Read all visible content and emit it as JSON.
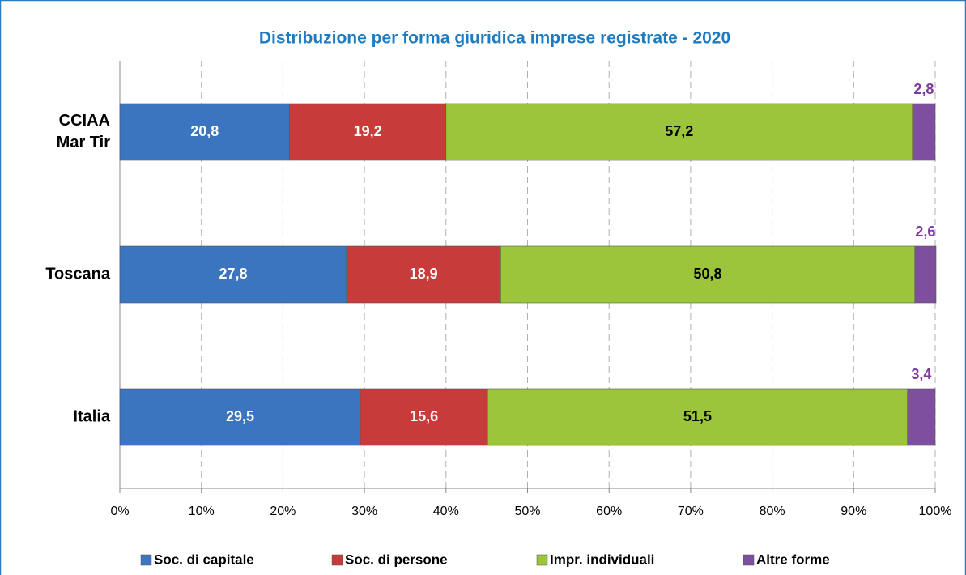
{
  "chart_data": {
    "type": "stacked-bar-horizontal",
    "title": "Distribuzione per forma giuridica imprese registrate - 2020",
    "categories": [
      "CCIAA Mar Tir",
      "Toscana",
      "Italia"
    ],
    "series": [
      {
        "name": "Soc. di capitale",
        "color": "#3b74bf",
        "label_color": "#ffffff",
        "values": [
          20.8,
          27.8,
          29.5
        ],
        "value_labels": [
          "20,8",
          "27,8",
          "29,5"
        ]
      },
      {
        "name": "Soc. di persone",
        "color": "#c73b3b",
        "label_color": "#ffffff",
        "values": [
          19.2,
          18.9,
          15.6
        ],
        "value_labels": [
          "19,2",
          "18,9",
          "15,6"
        ]
      },
      {
        "name": "Impr. individuali",
        "color": "#9cc53c",
        "label_color": "#000000",
        "values": [
          57.2,
          50.8,
          51.5
        ],
        "value_labels": [
          "57,2",
          "50,8",
          "51,5"
        ]
      },
      {
        "name": "Altre forme",
        "color": "#7d4f9e",
        "label_color": "#7d3ba0",
        "values": [
          2.8,
          2.6,
          3.4
        ],
        "value_labels": [
          "2,8",
          "2,6",
          "3,4"
        ]
      }
    ],
    "xlim": [
      0,
      100
    ],
    "xticks": [
      {
        "value": 0,
        "label": "0%"
      },
      {
        "value": 10,
        "label": "10%"
      },
      {
        "value": 20,
        "label": "20%"
      },
      {
        "value": 30,
        "label": "30%"
      },
      {
        "value": 40,
        "label": "40%"
      },
      {
        "value": 50,
        "label": "50%"
      },
      {
        "value": 60,
        "label": "60%"
      },
      {
        "value": 70,
        "label": "70%"
      },
      {
        "value": 80,
        "label": "80%"
      },
      {
        "value": 90,
        "label": "90%"
      },
      {
        "value": 100,
        "label": "100%"
      }
    ],
    "grid": true,
    "legend": "bottom"
  }
}
